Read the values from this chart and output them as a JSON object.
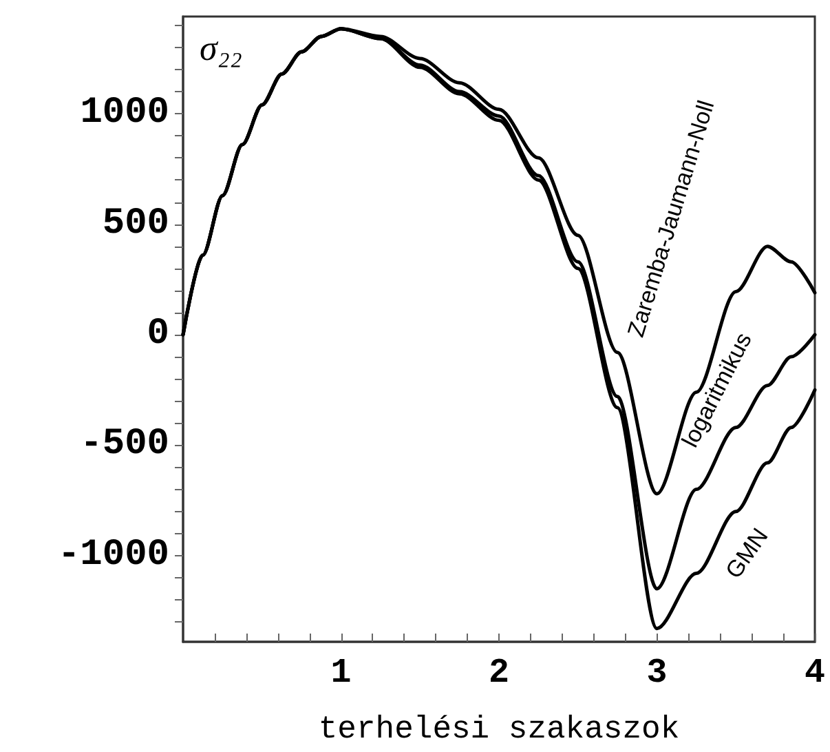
{
  "chart_data": {
    "type": "line",
    "xlabel": "terhelési szakaszok",
    "annotations": [
      "σ₂₂"
    ],
    "x": [
      0,
      0.125,
      0.25,
      0.375,
      0.5,
      0.625,
      0.75,
      0.875,
      1,
      1.25,
      1.5,
      1.75,
      2,
      2.25,
      2.5,
      2.75,
      3,
      3.25,
      3.5,
      3.7,
      3.85,
      4
    ],
    "series": [
      {
        "name": "Zaremba-Jaumann-Noll",
        "color": "#000000",
        "values": [
          0,
          360,
          630,
          860,
          1040,
          1180,
          1280,
          1350,
          1385,
          1350,
          1250,
          1140,
          1020,
          800,
          450,
          -80,
          -720,
          -260,
          195,
          400,
          330,
          190
        ]
      },
      {
        "name": "logaritmikus",
        "color": "#000000",
        "values": [
          0,
          360,
          630,
          860,
          1040,
          1180,
          1280,
          1350,
          1385,
          1340,
          1220,
          1100,
          990,
          720,
          330,
          -280,
          -1150,
          -700,
          -420,
          -230,
          -100,
          0
        ]
      },
      {
        "name": "GMN",
        "color": "#000000",
        "values": [
          0,
          360,
          630,
          860,
          1040,
          1180,
          1280,
          1350,
          1385,
          1340,
          1210,
          1090,
          970,
          700,
          300,
          -330,
          -1330,
          -1080,
          -800,
          -580,
          -420,
          -250
        ]
      }
    ],
    "xlim": [
      0,
      4
    ],
    "xticks": [
      {
        "value": 0.2,
        "label": null
      },
      {
        "value": 0.4,
        "label": null
      },
      {
        "value": 0.6,
        "label": null
      },
      {
        "value": 0.8,
        "label": null
      },
      1,
      {
        "value": 1.2,
        "label": null
      },
      {
        "value": 1.4,
        "label": null
      },
      {
        "value": 1.6,
        "label": null
      },
      {
        "value": 1.8,
        "label": null
      },
      2,
      {
        "value": 2.2,
        "label": null
      },
      {
        "value": 2.4,
        "label": null
      },
      {
        "value": 2.6,
        "label": null
      },
      {
        "value": 2.8,
        "label": null
      },
      3,
      {
        "value": 3.2,
        "label": null
      },
      {
        "value": 3.4,
        "label": null
      },
      {
        "value": 3.6,
        "label": null
      },
      {
        "value": 3.8,
        "label": null
      },
      4
    ],
    "ylim": [
      -1390,
      1440
    ],
    "yticks": [
      {
        "value": -1300,
        "label": null
      },
      {
        "value": -1200,
        "label": null
      },
      {
        "value": -1100,
        "label": null
      },
      -1000,
      {
        "value": -900,
        "label": null
      },
      {
        "value": -800,
        "label": null
      },
      {
        "value": -700,
        "label": null
      },
      {
        "value": -600,
        "label": null
      },
      -500,
      {
        "value": -400,
        "label": null
      },
      {
        "value": -300,
        "label": null
      },
      {
        "value": -200,
        "label": null
      },
      {
        "value": -100,
        "label": null
      },
      0,
      {
        "value": 100,
        "label": null
      },
      {
        "value": 200,
        "label": null
      },
      {
        "value": 300,
        "label": null
      },
      {
        "value": 400,
        "label": null
      },
      500,
      {
        "value": 600,
        "label": null
      },
      {
        "value": 700,
        "label": null
      },
      {
        "value": 800,
        "label": null
      },
      {
        "value": 900,
        "label": null
      },
      1000,
      {
        "value": 1100,
        "label": null
      },
      {
        "value": 1200,
        "label": null
      },
      {
        "value": 1300,
        "label": null
      },
      {
        "value": 1400,
        "label": null
      }
    ],
    "grid": false,
    "legend": false,
    "marker": "none",
    "line_style": "solid"
  }
}
